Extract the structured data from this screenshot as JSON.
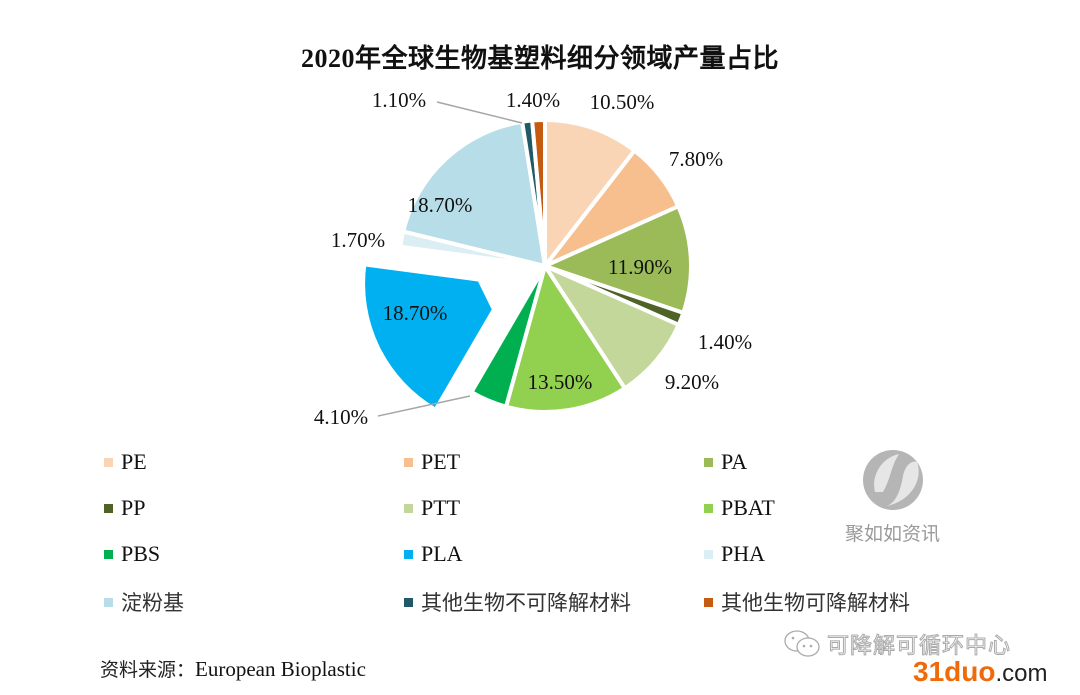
{
  "chart_data": {
    "type": "pie",
    "title": "2020年全球生物基塑料细分领域产量占比",
    "start_angle_deg": 0,
    "direction": "clockwise",
    "exploded": [
      "PLA"
    ],
    "legend_position": "bottom",
    "slices": [
      {
        "label": "PE",
        "value": 10.5,
        "display": "10.50%",
        "color": "#f9d4b5",
        "label_pos": "outside"
      },
      {
        "label": "PET",
        "value": 7.8,
        "display": "7.80%",
        "color": "#f7be8e",
        "label_pos": "outside"
      },
      {
        "label": "PA",
        "value": 11.9,
        "display": "11.90%",
        "color": "#9bbb59",
        "label_pos": "inside"
      },
      {
        "label": "PP",
        "value": 1.4,
        "display": "1.40%",
        "color": "#4f6228",
        "label_pos": "outside"
      },
      {
        "label": "PTT",
        "value": 9.2,
        "display": "9.20%",
        "color": "#c4d79b",
        "label_pos": "outside"
      },
      {
        "label": "PBAT",
        "value": 13.5,
        "display": "13.50%",
        "color": "#92d050",
        "label_pos": "inside"
      },
      {
        "label": "PBS",
        "value": 4.1,
        "display": "4.10%",
        "color": "#00b050",
        "label_pos": "outside-leader"
      },
      {
        "label": "PLA",
        "value": 18.7,
        "display": "18.70%",
        "color": "#00b0f0",
        "label_pos": "inside"
      },
      {
        "label": "PHA",
        "value": 1.7,
        "display": "1.70%",
        "color": "#daeef3",
        "label_pos": "outside"
      },
      {
        "label": "淀粉基",
        "value": 18.7,
        "display": "18.70%",
        "color": "#b7dde8",
        "label_pos": "inside"
      },
      {
        "label": "其他生物不可降解材料",
        "value": 1.1,
        "display": "1.10%",
        "color": "#215968",
        "label_pos": "outside-leader"
      },
      {
        "label": "其他生物可降解材料",
        "value": 1.4,
        "display": "1.40%",
        "color": "#c55a11",
        "label_pos": "outside"
      }
    ]
  },
  "source": {
    "prefix": "资料来源：",
    "name": "European Bioplastic"
  },
  "watermark": {
    "text": "聚如如资讯",
    "icon": "leaf-circle-logo-icon"
  },
  "wechat": {
    "icon": "wechat-icon",
    "text": "可降解可循环中心"
  },
  "site": {
    "number": "31duo",
    "domain": ".com"
  }
}
